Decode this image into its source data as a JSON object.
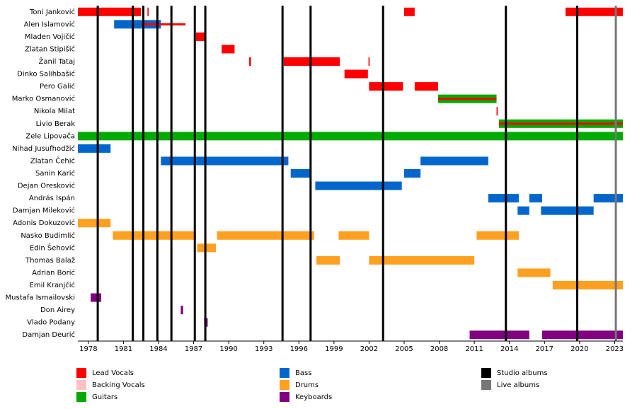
{
  "chart_data": {
    "type": "timeline",
    "roles": [
      {
        "name": "Lead Vocals",
        "color": "#ff0000"
      },
      {
        "name": "Backing Vocals",
        "color": "#ffc0c0"
      },
      {
        "name": "Guitars",
        "color": "#00aa00"
      },
      {
        "name": "Bass",
        "color": "#0066cc"
      },
      {
        "name": "Drums",
        "color": "#ffa020"
      },
      {
        "name": "Keyboards",
        "color": "#800080"
      }
    ],
    "albums": [
      {
        "name": "Studio albums",
        "color": "#000000",
        "years": [
          1978.8,
          1981.8,
          1982.7,
          1983.9,
          1985.1,
          1987.1,
          1988.0,
          1994.6,
          1997.0,
          2003.2,
          2013.7,
          2019.8
        ]
      },
      {
        "name": "Live albums",
        "color": "#777777",
        "years": [
          2023.1
        ]
      }
    ],
    "xlim": [
      1977.1,
      2023.7
    ],
    "xticks": [
      1978,
      1981,
      1984,
      1987,
      1990,
      1993,
      1996,
      1999,
      2002,
      2005,
      2008,
      2011,
      2014,
      2017,
      2020,
      2023
    ],
    "members": [
      {
        "name": "Toni Janković",
        "segments": [
          {
            "role": 0,
            "start": 1977.1,
            "end": 1982.5
          },
          {
            "role": 0,
            "start": 1983.05,
            "end": 1983.15
          },
          {
            "role": 0,
            "start": 2005.0,
            "end": 2005.9
          },
          {
            "role": 0,
            "start": 2018.8,
            "end": 2023.7
          }
        ]
      },
      {
        "name": "Alen Islamović",
        "segments": [
          {
            "role": 3,
            "start": 1980.2,
            "end": 1984.2
          },
          {
            "role": 0,
            "start": 1982.5,
            "end": 1986.3
          }
        ]
      },
      {
        "name": "Mladen Vojičić",
        "segments": [
          {
            "role": 0,
            "start": 1987.2,
            "end": 1988.0
          }
        ]
      },
      {
        "name": "Zlatan Stipišić",
        "segments": [
          {
            "role": 0,
            "start": 1989.4,
            "end": 1990.5
          }
        ]
      },
      {
        "name": "Žanil Tataj",
        "segments": [
          {
            "role": 0,
            "start": 1991.75,
            "end": 1991.9
          },
          {
            "role": 0,
            "start": 1994.7,
            "end": 1999.5
          },
          {
            "role": 0,
            "start": 2001.95,
            "end": 2002.05
          }
        ]
      },
      {
        "name": "Dinko Salihbašić",
        "segments": [
          {
            "role": 0,
            "start": 1999.9,
            "end": 2001.9
          }
        ]
      },
      {
        "name": "Pero Galić",
        "segments": [
          {
            "role": 0,
            "start": 2002.0,
            "end": 2004.9
          },
          {
            "role": 0,
            "start": 2005.9,
            "end": 2007.9
          }
        ]
      },
      {
        "name": "Marko Osmanović",
        "segments": [
          {
            "role": 2,
            "start": 2007.9,
            "end": 2012.9
          },
          {
            "role": 0,
            "start": 2007.9,
            "end": 2012.9
          }
        ]
      },
      {
        "name": "Nikola Milat",
        "segments": [
          {
            "role": 0,
            "start": 2012.9,
            "end": 2013.0
          }
        ]
      },
      {
        "name": "Livio Berak",
        "segments": [
          {
            "role": 2,
            "start": 2013.1,
            "end": 2023.7
          },
          {
            "role": 0,
            "start": 2013.1,
            "end": 2023.7
          }
        ]
      },
      {
        "name": "Zele Lipovača",
        "segments": [
          {
            "role": 2,
            "start": 1977.1,
            "end": 2023.7
          }
        ]
      },
      {
        "name": "Nihad Jusufhodžić",
        "segments": [
          {
            "role": 3,
            "start": 1977.1,
            "end": 1979.9
          }
        ]
      },
      {
        "name": "Zlatan Čehić",
        "segments": [
          {
            "role": 3,
            "start": 1984.2,
            "end": 1995.1
          },
          {
            "role": 3,
            "start": 2006.4,
            "end": 2012.2
          }
        ]
      },
      {
        "name": "Sanin Karić",
        "segments": [
          {
            "role": 3,
            "start": 1995.3,
            "end": 1997.0
          },
          {
            "role": 3,
            "start": 2005.0,
            "end": 2006.4
          }
        ]
      },
      {
        "name": "Dejan Oresković",
        "segments": [
          {
            "role": 3,
            "start": 1997.4,
            "end": 2004.8
          }
        ]
      },
      {
        "name": "András Ispán",
        "segments": [
          {
            "role": 3,
            "start": 2012.2,
            "end": 2014.8
          },
          {
            "role": 3,
            "start": 2015.7,
            "end": 2016.8
          },
          {
            "role": 3,
            "start": 2021.2,
            "end": 2023.7
          }
        ]
      },
      {
        "name": "Damjan Mileković",
        "segments": [
          {
            "role": 3,
            "start": 2014.7,
            "end": 2015.7
          },
          {
            "role": 3,
            "start": 2016.7,
            "end": 2021.2
          }
        ]
      },
      {
        "name": "Adonis Dokuzović",
        "segments": [
          {
            "role": 4,
            "start": 1977.1,
            "end": 1979.9
          }
        ]
      },
      {
        "name": "Nasko Budimlić",
        "segments": [
          {
            "role": 4,
            "start": 1980.1,
            "end": 1987.2
          },
          {
            "role": 4,
            "start": 1989.0,
            "end": 1997.3
          },
          {
            "role": 4,
            "start": 1999.4,
            "end": 2002.0
          },
          {
            "role": 4,
            "start": 2011.2,
            "end": 2014.8
          }
        ]
      },
      {
        "name": "Edin Šehović",
        "segments": [
          {
            "role": 4,
            "start": 1987.3,
            "end": 1988.9
          }
        ]
      },
      {
        "name": "Thomas Balaž",
        "segments": [
          {
            "role": 4,
            "start": 1997.5,
            "end": 1999.5
          },
          {
            "role": 4,
            "start": 2002.0,
            "end": 2011.0
          }
        ]
      },
      {
        "name": "Adrian Borić",
        "segments": [
          {
            "role": 4,
            "start": 2014.7,
            "end": 2017.5
          }
        ]
      },
      {
        "name": "Emil Kranjčić",
        "segments": [
          {
            "role": 4,
            "start": 2017.7,
            "end": 2023.7
          }
        ]
      },
      {
        "name": "Mustafa Ismailovski",
        "segments": [
          {
            "role": 5,
            "start": 1978.2,
            "end": 1979.1
          }
        ]
      },
      {
        "name": "Don Airey",
        "segments": [
          {
            "role": 5,
            "start": 1985.9,
            "end": 1986.1
          }
        ]
      },
      {
        "name": "Vlado Podany",
        "segments": [
          {
            "role": 5,
            "start": 1987.9,
            "end": 1988.2
          }
        ]
      },
      {
        "name": "Damjan Deurić",
        "segments": [
          {
            "role": 5,
            "start": 2010.6,
            "end": 2015.7
          },
          {
            "role": 5,
            "start": 2016.8,
            "end": 2023.7
          }
        ]
      }
    ]
  }
}
